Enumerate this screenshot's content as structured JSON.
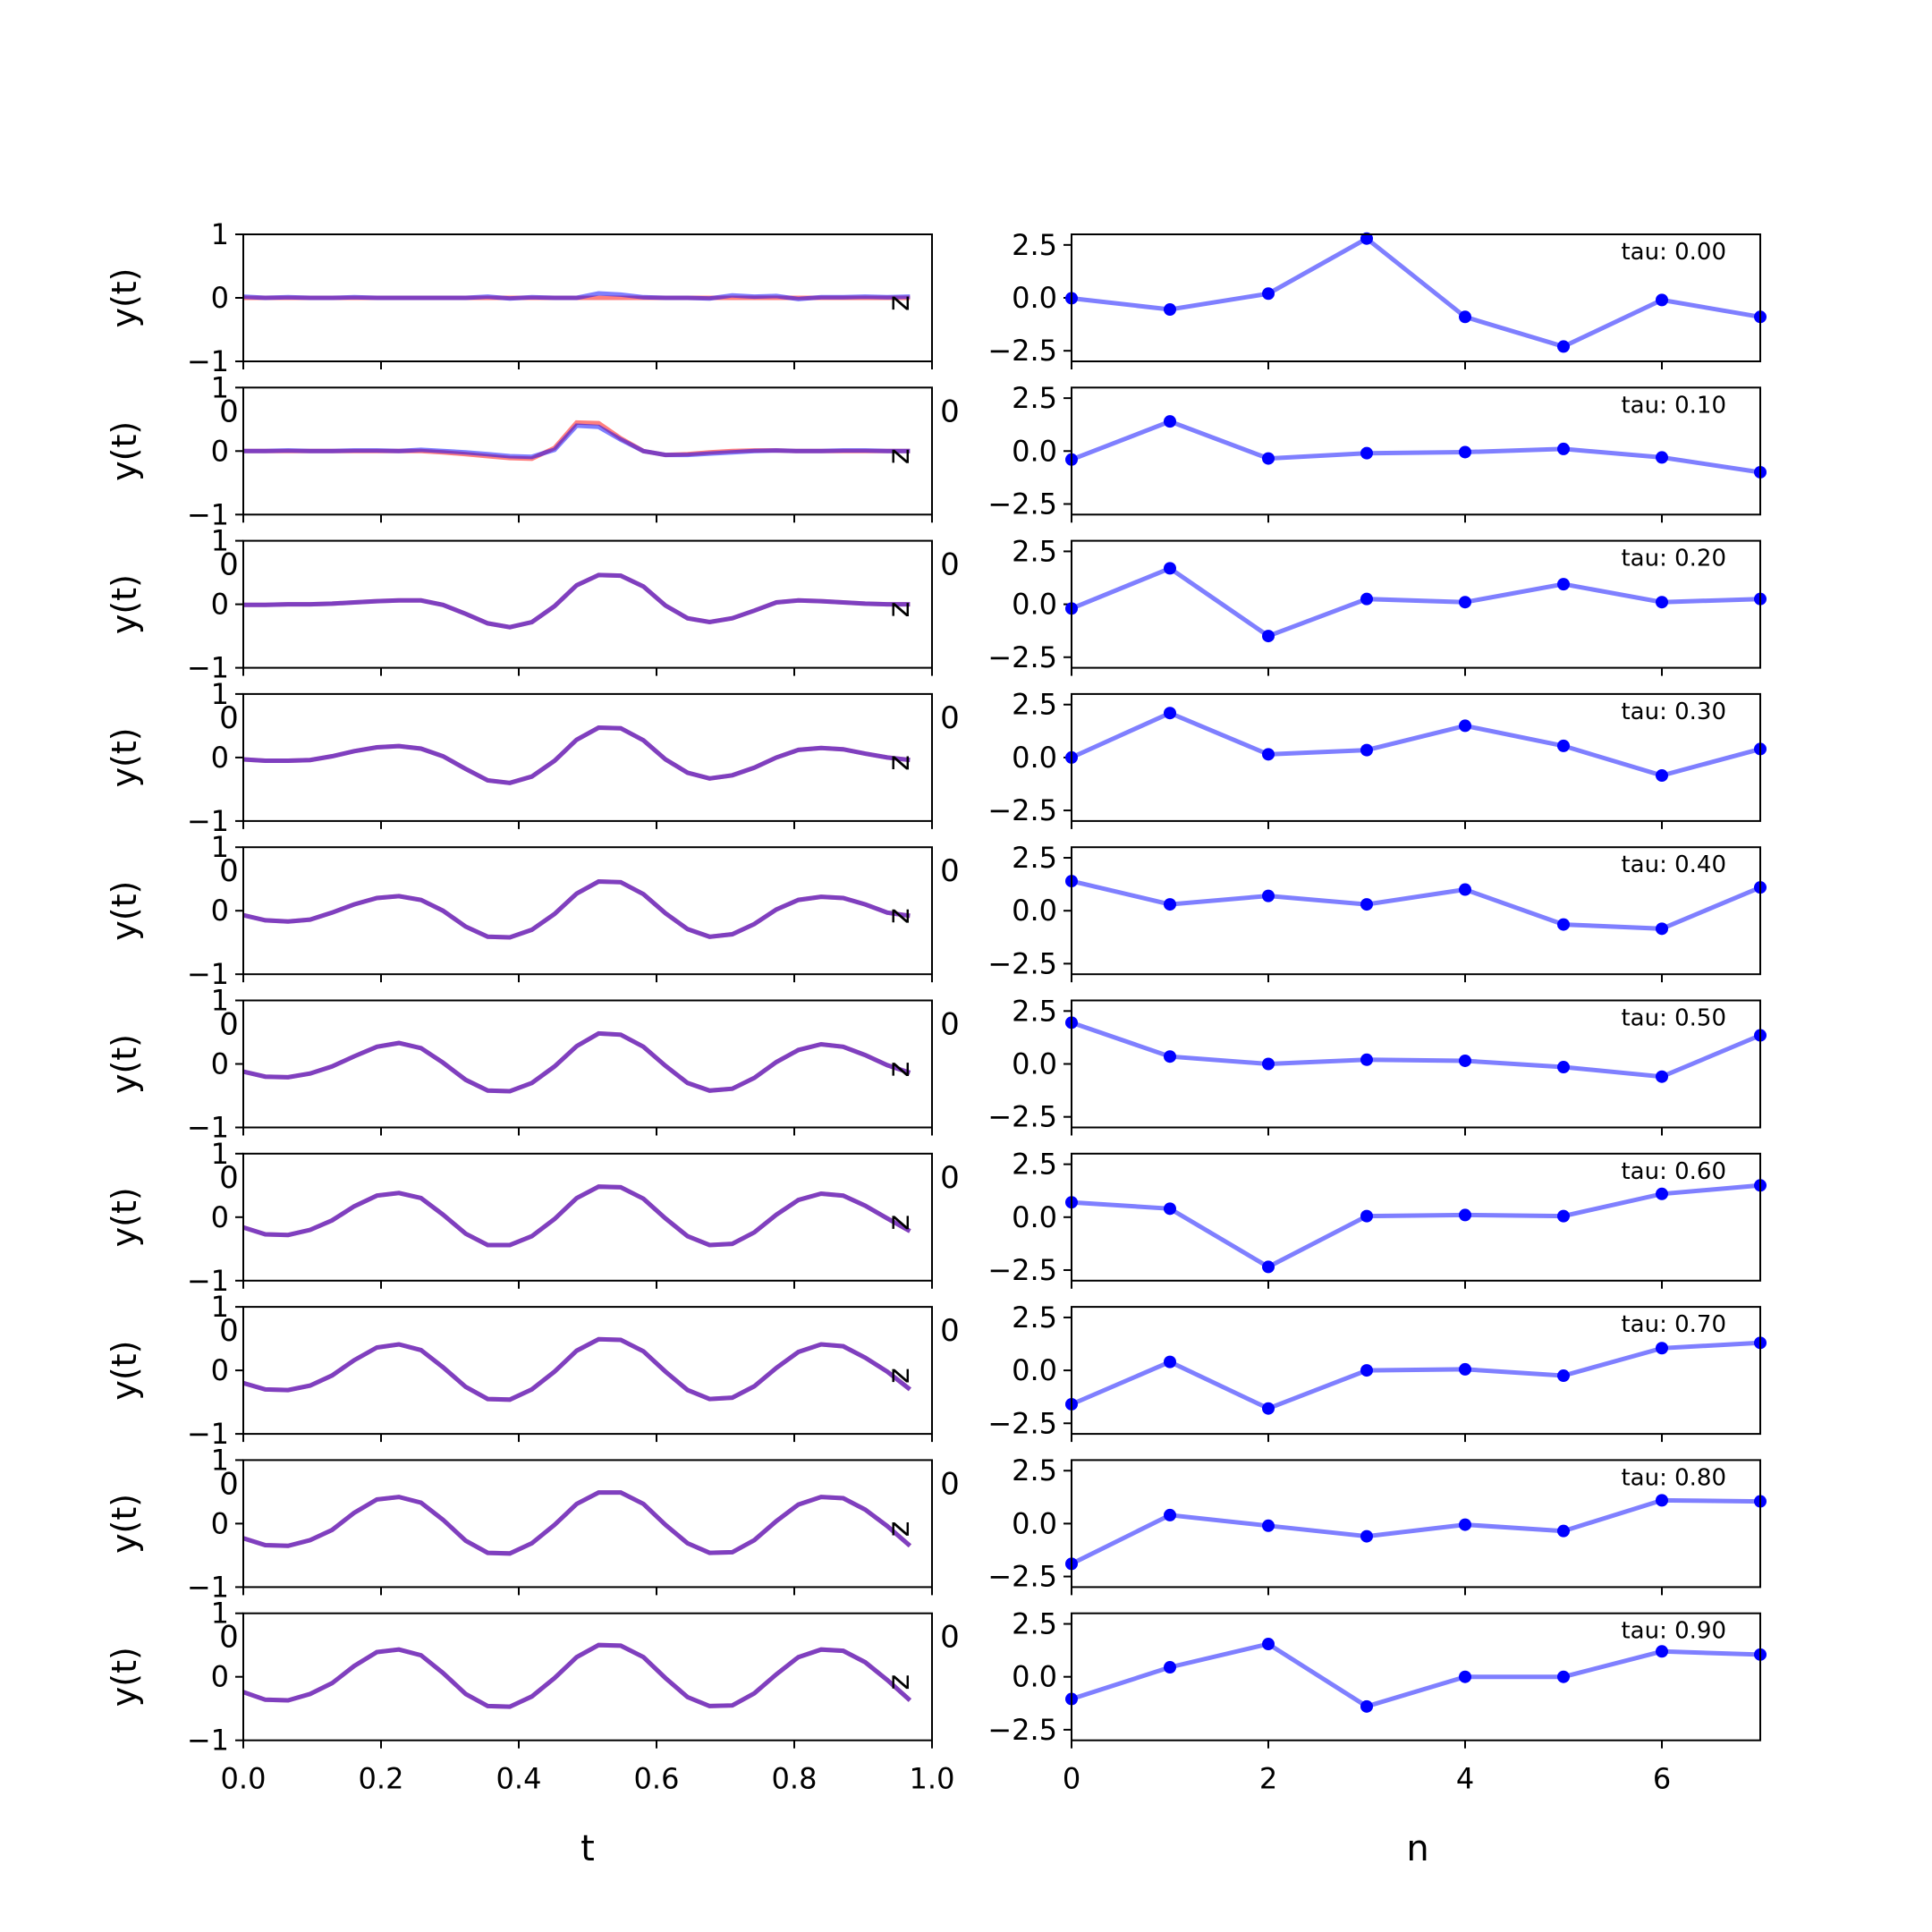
{
  "chart_data": {
    "type": "line",
    "layout": "10 rows x 2 columns of panels",
    "left_column": {
      "ylabel": "y(t)",
      "xlabel": "t",
      "xlim": [
        0.0,
        1.0
      ],
      "ylim": [
        -1,
        1
      ],
      "yticks": [
        1,
        0,
        -1
      ],
      "ytick_labels": [
        "1",
        "0",
        "−1"
      ],
      "xtick_labels": [
        "0.0",
        "0.2",
        "0.4",
        "0.6",
        "0.8",
        "1.0"
      ],
      "stray_label_left": "0",
      "side_label": "z",
      "colors": {
        "target": "#ff0000",
        "prediction": "#0000ff",
        "overlap": "#800080"
      },
      "t": [
        0.0,
        0.032,
        0.065,
        0.097,
        0.129,
        0.161,
        0.194,
        0.226,
        0.258,
        0.29,
        0.323,
        0.355,
        0.387,
        0.419,
        0.452,
        0.484,
        0.516,
        0.548,
        0.581,
        0.613,
        0.645,
        0.677,
        0.71,
        0.742,
        0.774,
        0.806,
        0.839,
        0.871,
        0.903,
        0.935,
        0.968
      ]
    },
    "right_column": {
      "xlabel": "n",
      "xlim": [
        0,
        7
      ],
      "ylim": [
        -3.0,
        3.0
      ],
      "yticks": [
        2.5,
        0.0,
        -2.5
      ],
      "ytick_labels": [
        "2.5",
        "0.0",
        "−2.5"
      ],
      "xticks": [
        0,
        2,
        4,
        6
      ],
      "xtick_labels": [
        "0",
        "2",
        "4",
        "6"
      ],
      "line_color": "#0000ff",
      "n": [
        0,
        1,
        2,
        3,
        4,
        5,
        6,
        7
      ]
    },
    "rows": [
      {
        "tau_label": "tau: 0.00",
        "left": {
          "target": [
            0.0,
            0.0,
            0.0,
            0.0,
            0.0,
            0.0,
            0.0,
            0.0,
            0.0,
            0.0,
            0.0,
            0.0,
            0.0,
            0.0,
            0.0,
            0.0,
            0.0,
            0.0,
            0.0,
            0.0,
            0.0,
            0.0,
            0.0,
            0.0,
            0.0,
            0.0,
            0.0,
            0.0,
            0.0,
            0.0,
            0.0
          ],
          "prediction": [
            0.02,
            0.0,
            0.01,
            0.0,
            0.0,
            0.01,
            0.0,
            0.0,
            0.0,
            0.0,
            0.0,
            0.02,
            -0.01,
            0.01,
            0.0,
            0.0,
            0.07,
            0.05,
            0.01,
            0.0,
            0.0,
            -0.01,
            0.04,
            0.02,
            0.03,
            -0.02,
            0.01,
            0.01,
            0.02,
            0.01,
            0.02
          ]
        },
        "right": [
          -0.02,
          -0.55,
          0.2,
          2.8,
          -0.9,
          -2.3,
          -0.1,
          -0.9
        ]
      },
      {
        "tau_label": "tau: 0.10",
        "left": {
          "target": [
            0.0,
            0.0,
            0.0,
            0.0,
            0.0,
            0.0,
            0.0,
            0.0,
            0.0,
            -0.02,
            -0.05,
            -0.08,
            -0.11,
            -0.12,
            0.05,
            0.45,
            0.44,
            0.2,
            0.0,
            -0.06,
            -0.05,
            -0.02,
            0.0,
            0.01,
            0.01,
            0.0,
            0.0,
            0.0,
            0.0,
            0.0,
            0.0
          ],
          "prediction": [
            0.0,
            0.0,
            0.01,
            0.0,
            0.0,
            0.01,
            0.01,
            0.0,
            0.02,
            0.0,
            -0.02,
            -0.05,
            -0.08,
            -0.09,
            0.02,
            0.4,
            0.38,
            0.18,
            0.0,
            -0.06,
            -0.06,
            -0.04,
            -0.02,
            0.0,
            0.01,
            0.0,
            0.0,
            0.01,
            0.01,
            0.0,
            0.0
          ]
        },
        "right": [
          -0.4,
          1.4,
          -0.35,
          -0.1,
          -0.05,
          0.1,
          -0.3,
          -1.0
        ]
      },
      {
        "tau_label": "tau: 0.20",
        "left": {
          "target": [
            -0.01,
            -0.01,
            0.0,
            0.0,
            0.01,
            0.03,
            0.05,
            0.06,
            0.06,
            -0.01,
            -0.15,
            -0.3,
            -0.36,
            -0.28,
            -0.03,
            0.3,
            0.46,
            0.45,
            0.28,
            -0.02,
            -0.22,
            -0.28,
            -0.22,
            -0.1,
            0.03,
            0.06,
            0.05,
            0.03,
            0.01,
            0.0,
            0.0
          ],
          "prediction": [
            -0.01,
            -0.01,
            0.0,
            0.0,
            0.01,
            0.03,
            0.05,
            0.06,
            0.06,
            -0.01,
            -0.15,
            -0.3,
            -0.36,
            -0.28,
            -0.03,
            0.3,
            0.46,
            0.45,
            0.28,
            -0.02,
            -0.22,
            -0.28,
            -0.22,
            -0.1,
            0.03,
            0.06,
            0.05,
            0.03,
            0.01,
            0.0,
            0.0
          ]
        },
        "right": [
          -0.2,
          1.7,
          -1.5,
          0.25,
          0.1,
          0.95,
          0.1,
          0.25
        ]
      },
      {
        "tau_label": "tau: 0.30",
        "left": {
          "target": [
            -0.03,
            -0.05,
            -0.05,
            -0.04,
            0.02,
            0.1,
            0.16,
            0.18,
            0.14,
            0.02,
            -0.18,
            -0.36,
            -0.4,
            -0.3,
            -0.05,
            0.28,
            0.47,
            0.46,
            0.27,
            -0.03,
            -0.24,
            -0.33,
            -0.28,
            -0.16,
            0.0,
            0.12,
            0.15,
            0.13,
            0.06,
            0.0,
            -0.04
          ],
          "prediction": [
            -0.03,
            -0.05,
            -0.05,
            -0.04,
            0.02,
            0.1,
            0.16,
            0.18,
            0.14,
            0.02,
            -0.18,
            -0.36,
            -0.4,
            -0.3,
            -0.05,
            0.28,
            0.47,
            0.46,
            0.27,
            -0.03,
            -0.24,
            -0.33,
            -0.28,
            -0.16,
            0.0,
            0.12,
            0.15,
            0.13,
            0.06,
            0.0,
            -0.04
          ]
        },
        "right": [
          0.0,
          2.1,
          0.15,
          0.35,
          1.5,
          0.55,
          -0.85,
          0.4
        ]
      },
      {
        "tau_label": "tau: 0.40",
        "left": {
          "target": [
            -0.07,
            -0.15,
            -0.17,
            -0.14,
            -0.03,
            0.1,
            0.2,
            0.23,
            0.17,
            0.0,
            -0.25,
            -0.41,
            -0.42,
            -0.3,
            -0.05,
            0.27,
            0.46,
            0.45,
            0.26,
            -0.04,
            -0.29,
            -0.41,
            -0.37,
            -0.21,
            0.02,
            0.17,
            0.22,
            0.2,
            0.1,
            -0.03,
            -0.08
          ],
          "prediction": [
            -0.07,
            -0.15,
            -0.17,
            -0.14,
            -0.03,
            0.1,
            0.2,
            0.23,
            0.17,
            0.0,
            -0.25,
            -0.41,
            -0.42,
            -0.3,
            -0.05,
            0.27,
            0.46,
            0.45,
            0.26,
            -0.04,
            -0.29,
            -0.41,
            -0.37,
            -0.21,
            0.02,
            0.17,
            0.22,
            0.2,
            0.1,
            -0.03,
            -0.08
          ]
        },
        "right": [
          1.4,
          0.3,
          0.7,
          0.3,
          1.0,
          -0.65,
          -0.85,
          1.1
        ]
      },
      {
        "tau_label": "tau: 0.50",
        "left": {
          "target": [
            -0.12,
            -0.2,
            -0.21,
            -0.15,
            -0.04,
            0.12,
            0.27,
            0.33,
            0.25,
            0.02,
            -0.25,
            -0.42,
            -0.43,
            -0.3,
            -0.04,
            0.28,
            0.48,
            0.46,
            0.27,
            -0.03,
            -0.3,
            -0.42,
            -0.39,
            -0.22,
            0.03,
            0.22,
            0.31,
            0.27,
            0.14,
            -0.02,
            -0.14
          ],
          "prediction": [
            -0.12,
            -0.2,
            -0.21,
            -0.15,
            -0.04,
            0.12,
            0.27,
            0.33,
            0.25,
            0.02,
            -0.25,
            -0.42,
            -0.43,
            -0.3,
            -0.04,
            0.28,
            0.48,
            0.46,
            0.27,
            -0.03,
            -0.3,
            -0.42,
            -0.39,
            -0.22,
            0.03,
            0.22,
            0.31,
            0.27,
            0.14,
            -0.02,
            -0.14
          ]
        },
        "right": [
          1.95,
          0.35,
          0.0,
          0.2,
          0.15,
          -0.15,
          -0.6,
          1.35
        ]
      },
      {
        "tau_label": "tau: 0.60",
        "left": {
          "target": [
            -0.16,
            -0.27,
            -0.28,
            -0.2,
            -0.05,
            0.17,
            0.34,
            0.38,
            0.3,
            0.04,
            -0.26,
            -0.44,
            -0.44,
            -0.3,
            -0.03,
            0.3,
            0.48,
            0.47,
            0.29,
            -0.02,
            -0.3,
            -0.44,
            -0.42,
            -0.24,
            0.04,
            0.27,
            0.37,
            0.34,
            0.18,
            -0.02,
            -0.22
          ],
          "prediction": [
            -0.16,
            -0.27,
            -0.28,
            -0.2,
            -0.05,
            0.17,
            0.34,
            0.38,
            0.3,
            0.04,
            -0.26,
            -0.44,
            -0.44,
            -0.3,
            -0.03,
            0.3,
            0.48,
            0.47,
            0.29,
            -0.02,
            -0.3,
            -0.44,
            -0.42,
            -0.24,
            0.04,
            0.27,
            0.37,
            0.34,
            0.18,
            -0.02,
            -0.22
          ]
        },
        "right": [
          0.7,
          0.4,
          -2.35,
          0.05,
          0.1,
          0.05,
          1.1,
          1.5
        ]
      },
      {
        "tau_label": "tau: 0.70",
        "left": {
          "target": [
            -0.2,
            -0.3,
            -0.31,
            -0.24,
            -0.08,
            0.16,
            0.36,
            0.41,
            0.32,
            0.05,
            -0.26,
            -0.45,
            -0.46,
            -0.3,
            -0.02,
            0.31,
            0.49,
            0.48,
            0.3,
            -0.02,
            -0.31,
            -0.45,
            -0.43,
            -0.25,
            0.04,
            0.29,
            0.41,
            0.38,
            0.2,
            -0.02,
            -0.3
          ],
          "prediction": [
            -0.2,
            -0.3,
            -0.31,
            -0.24,
            -0.08,
            0.16,
            0.36,
            0.41,
            0.32,
            0.05,
            -0.26,
            -0.45,
            -0.46,
            -0.3,
            -0.02,
            0.31,
            0.49,
            0.48,
            0.3,
            -0.02,
            -0.31,
            -0.45,
            -0.43,
            -0.25,
            0.04,
            0.29,
            0.41,
            0.38,
            0.2,
            -0.02,
            -0.3
          ]
        },
        "right": [
          -1.6,
          0.4,
          -1.8,
          0.0,
          0.05,
          -0.25,
          1.05,
          1.3
        ]
      },
      {
        "tau_label": "tau: 0.80",
        "left": {
          "target": [
            -0.23,
            -0.34,
            -0.35,
            -0.26,
            -0.1,
            0.17,
            0.38,
            0.42,
            0.33,
            0.06,
            -0.27,
            -0.46,
            -0.47,
            -0.31,
            -0.02,
            0.31,
            0.49,
            0.49,
            0.31,
            -0.02,
            -0.31,
            -0.46,
            -0.45,
            -0.26,
            0.04,
            0.3,
            0.42,
            0.4,
            0.22,
            -0.04,
            -0.35
          ],
          "prediction": [
            -0.23,
            -0.34,
            -0.35,
            -0.26,
            -0.1,
            0.17,
            0.38,
            0.42,
            0.33,
            0.06,
            -0.27,
            -0.46,
            -0.47,
            -0.31,
            -0.02,
            0.31,
            0.49,
            0.49,
            0.31,
            -0.02,
            -0.31,
            -0.46,
            -0.45,
            -0.26,
            0.04,
            0.3,
            0.42,
            0.4,
            0.22,
            -0.04,
            -0.35
          ]
        },
        "right": [
          -1.9,
          0.4,
          -0.1,
          -0.6,
          -0.05,
          -0.35,
          1.1,
          1.05
        ]
      },
      {
        "tau_label": "tau: 0.90",
        "left": {
          "target": [
            -0.24,
            -0.36,
            -0.37,
            -0.27,
            -0.1,
            0.17,
            0.39,
            0.43,
            0.34,
            0.06,
            -0.27,
            -0.46,
            -0.47,
            -0.31,
            -0.02,
            0.31,
            0.5,
            0.49,
            0.31,
            -0.02,
            -0.32,
            -0.46,
            -0.45,
            -0.26,
            0.04,
            0.31,
            0.43,
            0.41,
            0.23,
            -0.05,
            -0.37
          ],
          "prediction": [
            -0.24,
            -0.36,
            -0.37,
            -0.27,
            -0.1,
            0.17,
            0.39,
            0.43,
            0.34,
            0.06,
            -0.27,
            -0.46,
            -0.47,
            -0.31,
            -0.02,
            0.31,
            0.5,
            0.49,
            0.31,
            -0.02,
            -0.32,
            -0.46,
            -0.45,
            -0.26,
            0.04,
            0.31,
            0.43,
            0.41,
            0.23,
            -0.05,
            -0.37
          ]
        },
        "right": [
          -1.05,
          0.45,
          1.55,
          -1.4,
          0.0,
          0.0,
          1.2,
          1.05
        ]
      }
    ]
  }
}
